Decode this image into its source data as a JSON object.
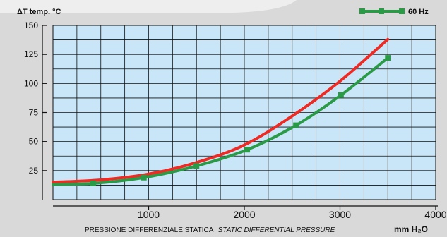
{
  "chart_data": {
    "type": "line",
    "ylabel": "ΔT  temp. °C",
    "xlabel": "PRESSIONE DIFFERENZIALE STATICA",
    "xlabel_italic": "STATIC DIFFERENTIAL PRESSURE",
    "x_unit": "mm H₂O",
    "xlim": [
      0,
      4000
    ],
    "ylim": [
      0,
      150
    ],
    "x_ticks": [
      1000,
      2000,
      3000,
      4000
    ],
    "y_ticks": [
      25,
      50,
      75,
      100,
      125,
      150
    ],
    "grid": true,
    "legend_position": "top-right",
    "series": [
      {
        "name": "",
        "color": "#ee2a24",
        "markers": false,
        "x": [
          0,
          500,
          1000,
          1500,
          2000,
          2500,
          3000,
          3500
        ],
        "y": [
          15,
          17,
          22,
          32,
          47,
          72,
          102,
          138
        ]
      },
      {
        "name": "60 Hz",
        "color": "#2a9a46",
        "markers": true,
        "x": [
          0,
          420,
          950,
          1500,
          2030,
          2540,
          3010,
          3500
        ],
        "y": [
          13,
          14,
          19,
          29,
          43,
          64,
          90,
          122
        ]
      }
    ]
  }
}
